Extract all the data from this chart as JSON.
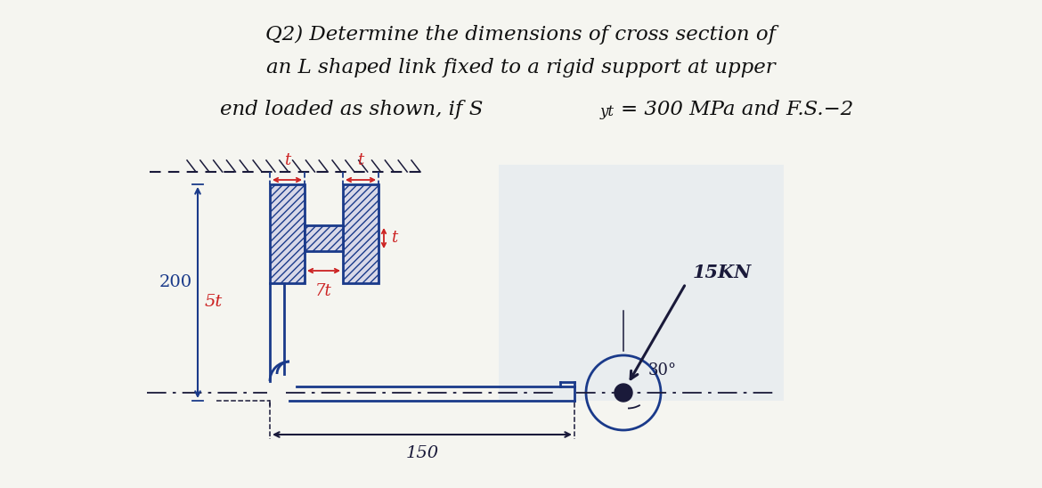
{
  "title_line1": "Q2) Determine the dimensions of cross section of",
  "title_line2": "an L shaped link fixed to a rigid support at upper",
  "title_line3_main": "end loaded as shown, if S",
  "title_line3_sub": "yt",
  "title_line3_end": "= 300 MPa and F.S.−2",
  "bg_color": "#f5f5f0",
  "text_color": "#111111",
  "blue_color": "#1a3a8a",
  "red_color": "#cc2222",
  "dark_color": "#1a1a3a",
  "label_200": "200",
  "label_5t": "5t",
  "label_t_top1": "t",
  "label_t_top2": "t",
  "label_t_web": "t",
  "label_7t": "7t",
  "label_150": "150",
  "label_15kn": "15KN",
  "label_30": "30°",
  "hatch_color": "#555577"
}
